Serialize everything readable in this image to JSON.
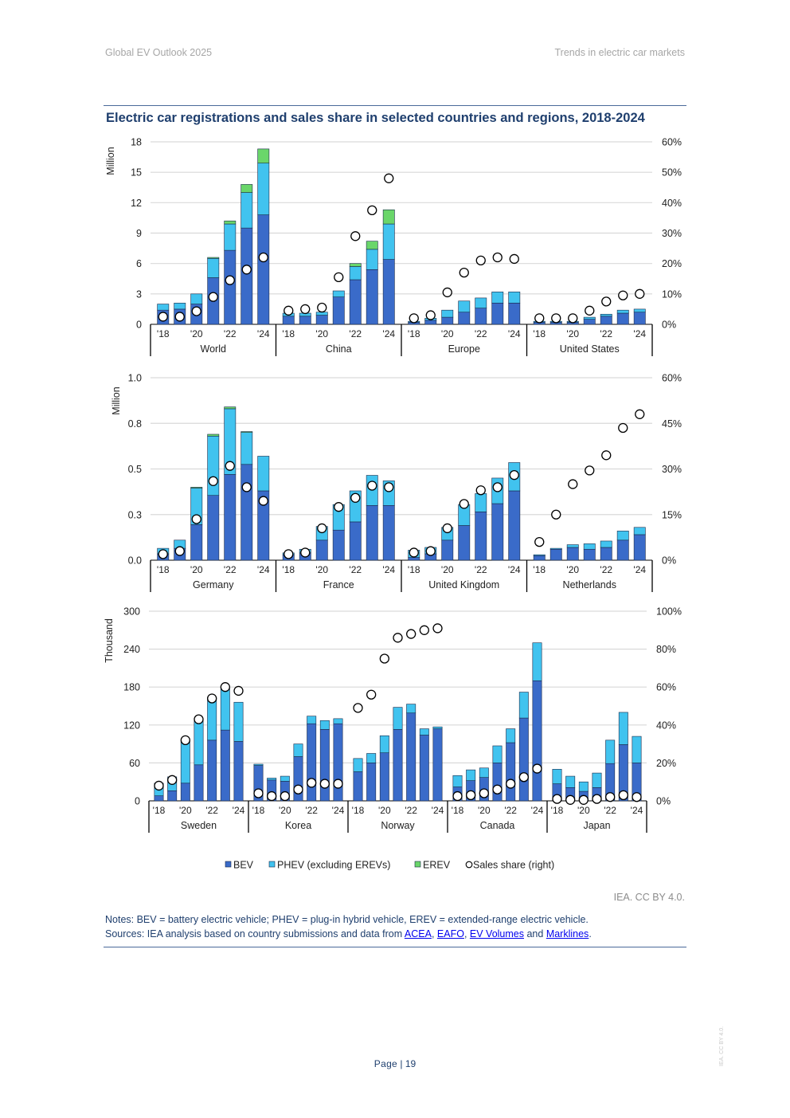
{
  "header": {
    "left": "Global EV Outlook 2025",
    "right": "Trends in electric car markets"
  },
  "title": "Electric car registrations and sales share in selected countries and regions, 2018-2024",
  "credit": "IEA. CC BY 4.0.",
  "notes": {
    "line1": "Notes: BEV = battery electric vehicle; PHEV = plug-in hybrid vehicle, EREV = extended-range electric vehicle.",
    "line2_prefix": "Sources: IEA analysis based on country submissions and data from ",
    "link1": "ACEA",
    "sep1": ", ",
    "link2": "EAFO",
    "sep2": ", ",
    "link3": "EV Volumes",
    "and": " and ",
    "link4": "Marklines",
    "end": "."
  },
  "page": {
    "label": "Page",
    "sep": " | ",
    "number": "19"
  },
  "side_watermark": "IEA. CC BY 4.0.",
  "colors": {
    "bev": "#3a6bc9",
    "phev": "#41c3ef",
    "erev": "#6ad66a",
    "grid": "#d9d9d9",
    "axis": "#000000"
  },
  "legend": [
    {
      "key": "bev",
      "label": "BEV"
    },
    {
      "key": "phev",
      "label": "PHEV (excluding EREVs)"
    },
    {
      "key": "erev",
      "label": "EREV"
    },
    {
      "key": "share",
      "label": "Sales share (right)"
    }
  ],
  "chart_data": [
    {
      "type": "bar",
      "stacked": true,
      "unit_label": "Million",
      "ylim": [
        0,
        18
      ],
      "yticks": [
        "0",
        "3",
        "6",
        "9",
        "12",
        "15",
        "18"
      ],
      "y2lim": [
        0,
        60
      ],
      "y2ticks": [
        "0%",
        "10%",
        "20%",
        "30%",
        "40%",
        "50%",
        "60%"
      ],
      "year_ticks": [
        "'18",
        "'20",
        "'22",
        "'24"
      ],
      "years": [
        2018,
        2019,
        2020,
        2021,
        2022,
        2023,
        2024
      ],
      "groups": [
        {
          "name": "World",
          "bev": [
            1.4,
            1.5,
            2.0,
            4.6,
            7.3,
            9.5,
            10.8
          ],
          "phev": [
            0.6,
            0.6,
            1.0,
            1.9,
            2.6,
            3.5,
            5.1
          ],
          "erev": [
            0,
            0,
            0,
            0.1,
            0.3,
            0.8,
            1.4
          ],
          "share": [
            2.5,
            2.5,
            4.3,
            9,
            14.5,
            18,
            22
          ]
        },
        {
          "name": "China",
          "bev": [
            0.8,
            0.8,
            0.9,
            2.7,
            4.4,
            5.4,
            6.4
          ],
          "phev": [
            0.3,
            0.3,
            0.3,
            0.6,
            1.3,
            2.0,
            3.5
          ],
          "erev": [
            0,
            0,
            0,
            0,
            0.3,
            0.8,
            1.4
          ],
          "share": [
            4.5,
            5,
            5.5,
            15.5,
            29,
            37.5,
            48
          ]
        },
        {
          "name": "Europe",
          "bev": [
            0.2,
            0.4,
            0.7,
            1.2,
            1.6,
            2.1,
            2.1
          ],
          "phev": [
            0.1,
            0.2,
            0.7,
            1.1,
            1.0,
            1.1,
            1.1
          ],
          "erev": [
            0,
            0,
            0,
            0,
            0,
            0,
            0
          ],
          "share": [
            2,
            3,
            10.5,
            17,
            21,
            22,
            21.5
          ]
        },
        {
          "name": "United States",
          "bev": [
            0.2,
            0.2,
            0.2,
            0.5,
            0.8,
            1.1,
            1.2
          ],
          "phev": [
            0.1,
            0.1,
            0.1,
            0.2,
            0.2,
            0.3,
            0.3
          ],
          "erev": [
            0,
            0,
            0,
            0,
            0,
            0,
            0
          ],
          "share": [
            2,
            2,
            2,
            4.5,
            7.5,
            9.5,
            10
          ]
        }
      ]
    },
    {
      "type": "bar",
      "stacked": true,
      "unit_label": "Million",
      "ylim": [
        0,
        1.0
      ],
      "yticks": [
        "0.0",
        "0.3",
        "0.5",
        "0.8",
        "1.0"
      ],
      "y2lim": [
        0,
        60
      ],
      "y2ticks": [
        "0%",
        "15%",
        "30%",
        "45%",
        "60%"
      ],
      "year_ticks": [
        "'18",
        "'20",
        "'22",
        "'24"
      ],
      "years": [
        2018,
        2019,
        2020,
        2021,
        2022,
        2023,
        2024
      ],
      "groups": [
        {
          "name": "Germany",
          "bev": [
            0.035,
            0.065,
            0.195,
            0.355,
            0.47,
            0.525,
            0.38
          ],
          "phev": [
            0.03,
            0.045,
            0.2,
            0.325,
            0.36,
            0.175,
            0.19
          ],
          "erev": [
            0,
            0,
            0.005,
            0.01,
            0.01,
            0.005,
            0
          ],
          "share": [
            2,
            3,
            13.5,
            26,
            31,
            24,
            19.5
          ]
        },
        {
          "name": "France",
          "bev": [
            0.03,
            0.04,
            0.11,
            0.165,
            0.21,
            0.3,
            0.3
          ],
          "phev": [
            0.01,
            0.02,
            0.075,
            0.14,
            0.17,
            0.165,
            0.135
          ],
          "erev": [
            0,
            0,
            0,
            0,
            0,
            0,
            0
          ],
          "share": [
            2,
            2.5,
            10.5,
            17.5,
            20.5,
            24.5,
            24
          ]
        },
        {
          "name": "United Kingdom",
          "bev": [
            0.015,
            0.035,
            0.11,
            0.19,
            0.265,
            0.31,
            0.38
          ],
          "phev": [
            0.04,
            0.035,
            0.07,
            0.115,
            0.1,
            0.14,
            0.155
          ],
          "erev": [
            0,
            0,
            0,
            0,
            0,
            0,
            0
          ],
          "share": [
            2.5,
            3,
            10.5,
            18.5,
            23,
            24,
            28
          ]
        },
        {
          "name": "Netherlands",
          "bev": [
            0.025,
            0.06,
            0.07,
            0.06,
            0.07,
            0.11,
            0.14
          ],
          "phev": [
            0.005,
            0.005,
            0.015,
            0.03,
            0.035,
            0.05,
            0.04
          ],
          "erev": [
            0,
            0,
            0,
            0,
            0,
            0,
            0
          ],
          "share": [
            6,
            15,
            25,
            29.5,
            34.5,
            43.5,
            48
          ]
        }
      ]
    },
    {
      "type": "bar",
      "stacked": true,
      "unit_label": "Thousand",
      "ylim": [
        0,
        300
      ],
      "yticks": [
        "0",
        "60",
        "120",
        "180",
        "240",
        "300"
      ],
      "y2lim": [
        0,
        100
      ],
      "y2ticks": [
        "0%",
        "20%",
        "40%",
        "60%",
        "80%",
        "100%"
      ],
      "year_ticks": [
        "'18",
        "'20",
        "'22",
        "'24"
      ],
      "years": [
        2018,
        2019,
        2020,
        2021,
        2022,
        2023,
        2024
      ],
      "groups": [
        {
          "name": "Sweden",
          "bev": [
            8,
            16,
            28,
            57,
            96,
            112,
            94
          ],
          "phev": [
            20,
            22,
            66,
            70,
            68,
            65,
            62
          ],
          "erev": [
            0,
            0,
            0,
            0,
            0,
            0,
            0
          ],
          "share": [
            8,
            11,
            32,
            43,
            54,
            60,
            58
          ]
        },
        {
          "name": "Korea",
          "bev": [
            56,
            33,
            31,
            70,
            122,
            113,
            122
          ],
          "phev": [
            2,
            3,
            8,
            20,
            12,
            14,
            8
          ],
          "erev": [
            0,
            0,
            0,
            0,
            0,
            0,
            0
          ],
          "share": [
            4,
            2.5,
            2.5,
            6,
            9.5,
            9,
            9
          ]
        },
        {
          "name": "Norway",
          "bev": [
            46,
            60,
            76,
            113,
            139,
            104,
            114
          ],
          "phev": [
            21,
            15,
            27,
            35,
            14,
            10,
            3
          ],
          "erev": [
            0,
            0,
            0,
            0,
            0,
            0,
            0
          ],
          "share": [
            49,
            56,
            75,
            86,
            88,
            90,
            91
          ]
        },
        {
          "name": "Canada",
          "bev": [
            22,
            32,
            37,
            60,
            92,
            131,
            190
          ],
          "phev": [
            18,
            17,
            15,
            27,
            22,
            41,
            60
          ],
          "erev": [
            0,
            0,
            0,
            0,
            0,
            0,
            0
          ],
          "share": [
            2.5,
            3,
            4,
            6,
            9,
            12.5,
            17
          ]
        },
        {
          "name": "Japan",
          "bev": [
            27,
            21,
            15,
            21,
            59,
            89,
            60
          ],
          "phev": [
            23,
            18,
            15,
            23,
            37,
            51,
            42
          ],
          "erev": [
            0,
            0,
            0,
            0,
            0,
            0,
            0
          ],
          "share": [
            1,
            0.5,
            0.5,
            1,
            2,
            3,
            2
          ]
        }
      ]
    }
  ]
}
